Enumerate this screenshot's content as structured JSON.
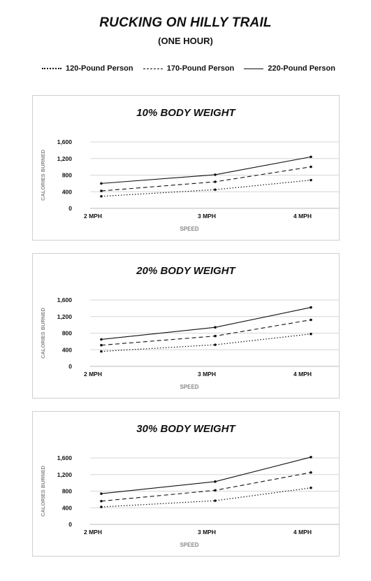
{
  "title": "RUCKING ON HILLY TRAIL",
  "subtitle": "(ONE HOUR)",
  "legend": [
    {
      "label": "120-Pound Person",
      "style": "dotted"
    },
    {
      "label": "170-Pound Person",
      "style": "dashed"
    },
    {
      "label": "220-Pound Person",
      "style": "solid"
    }
  ],
  "chart_data": [
    {
      "type": "line",
      "title": "10% BODY WEIGHT",
      "xlabel": "SPEED",
      "ylabel": "CALORIES BURNED",
      "categories": [
        "2 MPH",
        "3 MPH",
        "4 MPH"
      ],
      "ylim": [
        0,
        1600
      ],
      "yticks": [
        "0",
        "400",
        "800",
        "1,200",
        "1,600"
      ],
      "grid": true,
      "series": [
        {
          "name": "120-Pound Person",
          "values": [
            290,
            450,
            680
          ]
        },
        {
          "name": "170-Pound Person",
          "values": [
            420,
            640,
            1000
          ]
        },
        {
          "name": "220-Pound Person",
          "values": [
            600,
            810,
            1240
          ]
        }
      ]
    },
    {
      "type": "line",
      "title": "20% BODY WEIGHT",
      "xlabel": "SPEED",
      "ylabel": "CALORIES BURNED",
      "categories": [
        "2 MPH",
        "3 MPH",
        "4 MPH"
      ],
      "ylim": [
        0,
        1600
      ],
      "yticks": [
        "0",
        "400",
        "800",
        "1,200",
        "1,600"
      ],
      "grid": true,
      "series": [
        {
          "name": "120-Pound Person",
          "values": [
            360,
            520,
            780
          ]
        },
        {
          "name": "170-Pound Person",
          "values": [
            510,
            730,
            1120
          ]
        },
        {
          "name": "220-Pound Person",
          "values": [
            650,
            940,
            1420
          ]
        }
      ]
    },
    {
      "type": "line",
      "title": "30% BODY WEIGHT",
      "xlabel": "SPEED",
      "ylabel": "CALORIES BURNED",
      "categories": [
        "2 MPH",
        "3 MPH",
        "4 MPH"
      ],
      "ylim": [
        0,
        1600
      ],
      "yticks": [
        "0",
        "400",
        "800",
        "1,200",
        "1,600"
      ],
      "grid": true,
      "series": [
        {
          "name": "120-Pound Person",
          "values": [
            420,
            570,
            880
          ]
        },
        {
          "name": "170-Pound Person",
          "values": [
            560,
            820,
            1250
          ]
        },
        {
          "name": "220-Pound Person",
          "values": [
            740,
            1030,
            1620
          ]
        }
      ]
    }
  ]
}
